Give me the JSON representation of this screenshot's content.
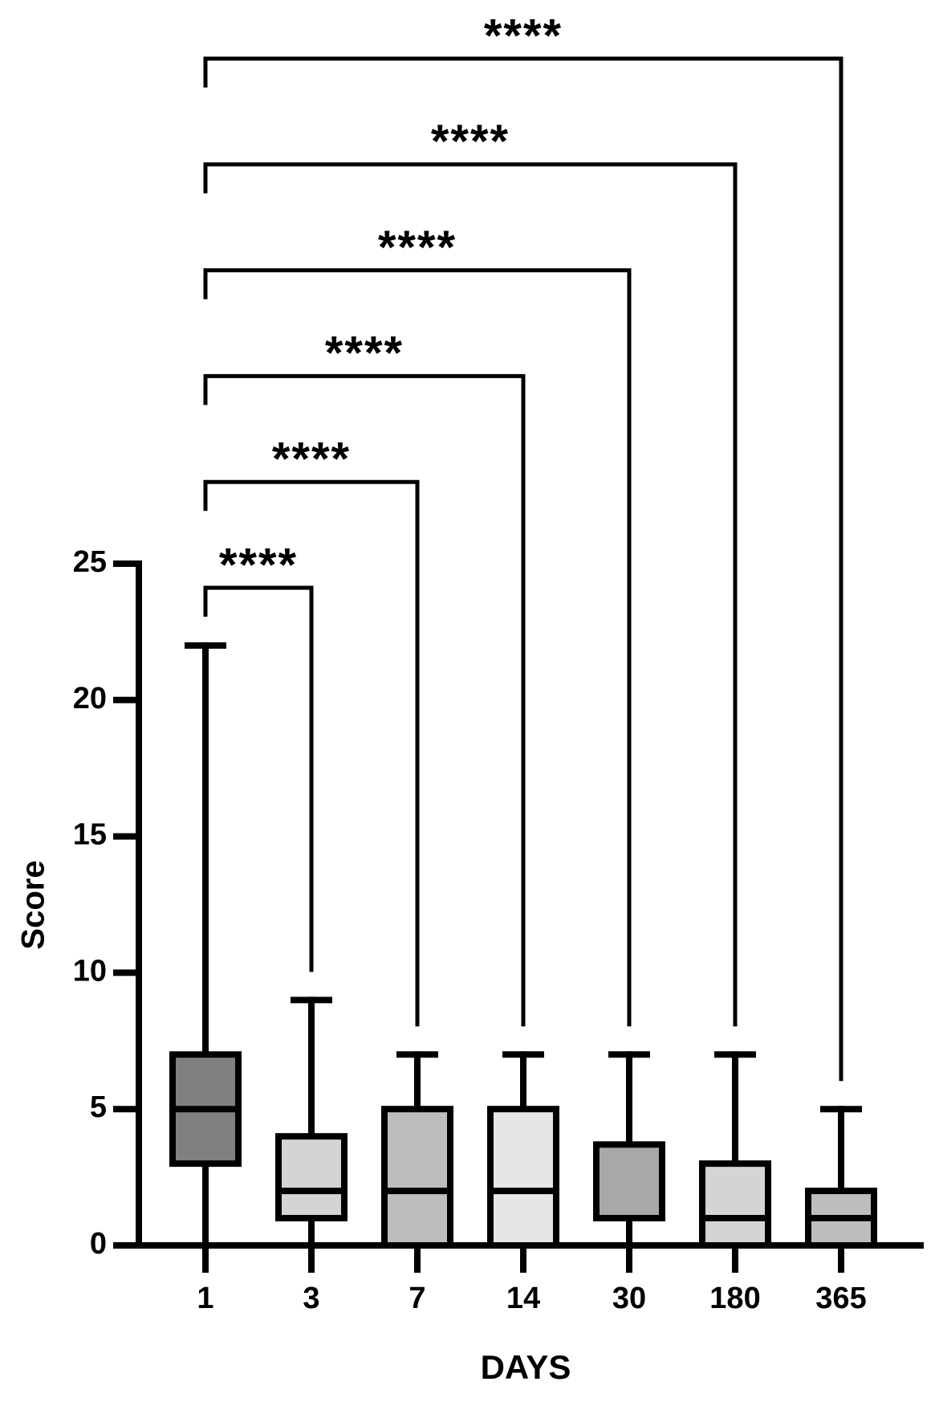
{
  "chart_data": {
    "type": "box",
    "x_label": "DAYS",
    "y_label": "Score",
    "categories": [
      "1",
      "3",
      "7",
      "14",
      "30",
      "180",
      "365"
    ],
    "series": [
      {
        "min": [
          0,
          0,
          0,
          0,
          0,
          0,
          0
        ],
        "q1": [
          3,
          1,
          0,
          0,
          1,
          0,
          0
        ],
        "median": [
          5,
          2,
          2,
          2,
          1,
          1,
          1
        ],
        "q3": [
          7,
          4,
          5,
          5,
          3.7,
          3,
          2
        ],
        "max": [
          22,
          9,
          7,
          7,
          7,
          7,
          5
        ],
        "colors": [
          "#808080",
          "#d4d4d4",
          "#bdbdbd",
          "#e6e6e6",
          "#a8a8a8",
          "#d4d4d4",
          "#bdbdbd"
        ]
      }
    ],
    "ylim": [
      0,
      25
    ],
    "yticks": [
      0,
      5,
      10,
      15,
      20,
      25
    ],
    "comparisons": [
      {
        "from": "1",
        "to": "3",
        "label": "****"
      },
      {
        "from": "1",
        "to": "7",
        "label": "****"
      },
      {
        "from": "1",
        "to": "14",
        "label": "****"
      },
      {
        "from": "1",
        "to": "30",
        "label": "****"
      },
      {
        "from": "1",
        "to": "180",
        "label": "****"
      },
      {
        "from": "1",
        "to": "365",
        "label": "****"
      }
    ]
  }
}
